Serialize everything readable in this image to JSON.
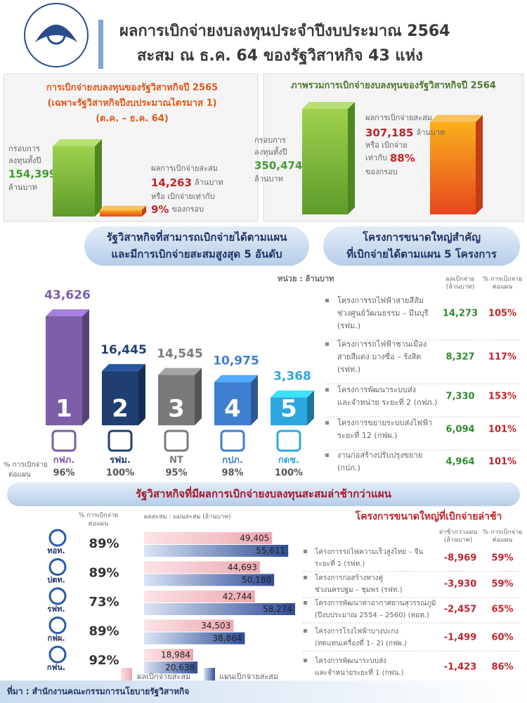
{
  "header": {
    "title": [
      "ผลการเบิกจ่ายงบลงทุนประจำปีงบประมาณ 2564",
      "สะสม ณ ธ.ค. 64 ของรัฐวิสาหกิจ 43 แห่ง"
    ]
  },
  "panel_2565": {
    "title": [
      "การเบิกจ่ายงบลงทุนของรัฐวิสาหกิจปี 2565",
      "(เฉพาะรัฐวิสาหกิจปีงบประมาณไตรมาส 1)",
      "(ต.ค. – ธ.ค. 64)"
    ],
    "budget_caption": [
      "กรอบการ",
      "ลงทุนทั้งปี"
    ],
    "budget": {
      "value": 154399,
      "label": "154,399"
    },
    "budget_unit": "ล้านบาท",
    "spent_caption": "ผลการเบิกจ่ายสะสม",
    "spent": {
      "value": 14263,
      "label": "14,263"
    },
    "spent_unit": "ล้านบาท",
    "ratio_caption": "หรือ เบิกจ่ายเท่ากับ",
    "ratio": "9%",
    "ratio_suffix": "ของกรอบ"
  },
  "panel_2564": {
    "title": "ภาพรวมการเบิกจ่ายงบลงทุนของรัฐวิสาหกิจปี 2564",
    "budget_caption": [
      "กรอบการ",
      "ลงทุนทั้งปี"
    ],
    "budget": {
      "value": 350474,
      "label": "350,474"
    },
    "budget_unit": "ล้านบาท",
    "spent_caption": "ผลการเบิกจ่ายสะสม",
    "spent": {
      "value": 307185,
      "label": "307,185"
    },
    "spent_unit": "ล้านบาท",
    "ratio_caption": [
      "หรือ เบิกจ่าย",
      "เท่ากับ"
    ],
    "ratio": "88%",
    "ratio_suffix": "ของกรอบ"
  },
  "top5": {
    "heading": [
      "รัฐวิสาหกิจที่สามารถเบิกจ่ายได้ตามแผน",
      "และมีการเบิกจ่ายสะสมสูงสุด 5 อันดับ"
    ],
    "unit": "หน่วย : ล้านบาท",
    "pct_caption": [
      "% การเบิกจ่าย",
      "ต่อแผน"
    ],
    "items": [
      {
        "rank": "1",
        "name": "กฟภ.",
        "value": {
          "value": 43626,
          "label": "43,626"
        },
        "pct": "96%",
        "color": "#7b5ea7"
      },
      {
        "rank": "2",
        "name": "รฟม.",
        "value": {
          "value": 16445,
          "label": "16,445"
        },
        "pct": "100%",
        "color": "#1f3f73"
      },
      {
        "rank": "3",
        "name": "NT",
        "value": {
          "value": 14545,
          "label": "14,545"
        },
        "pct": "95%",
        "color": "#7a7a7a"
      },
      {
        "rank": "4",
        "name": "กปภ.",
        "value": {
          "value": 10975,
          "label": "10,975"
        },
        "pct": "98%",
        "color": "#3f7fd0"
      },
      {
        "rank": "5",
        "name": "กดช.",
        "value": {
          "value": 3368,
          "label": "3,368"
        },
        "pct": "100%",
        "color": "#2ea7e0"
      }
    ]
  },
  "big_projects": {
    "heading": [
      "โครงการขนาดใหญ่สำคัญ",
      "ที่เบิกจ่ายได้ตามแผน 5 โครงการ"
    ],
    "col_value": [
      "ผลเบิกจ่าย",
      "(ล้านบาท)"
    ],
    "col_pct": [
      "% การเบิกจ่าย",
      "ต่อแผน"
    ],
    "items": [
      {
        "name": [
          "โครงการรถไฟฟ้าสายสีส้ม",
          "ช่วงศูนย์วัฒนธรรม – มีนบุรี",
          "(รฟม.)"
        ],
        "value": "14,273",
        "pct": "105%"
      },
      {
        "name": [
          "โครงการรถไฟฟ้าชานเมือง",
          "สายสีแดง บางซื่อ – รังสิต",
          "(รฟท.)"
        ],
        "value": "8,327",
        "pct": "117%"
      },
      {
        "name": [
          "โครงการพัฒนาระบบส่ง",
          "และจำหน่าย ระยะที่ 2 (กฟภ.)"
        ],
        "value": "7,330",
        "pct": "153%"
      },
      {
        "name": [
          "โครงการขยายระบบส่งไฟฟ้า",
          "ระยะที่ 12 (กฟผ.)"
        ],
        "value": "6,094",
        "pct": "101%"
      },
      {
        "name": [
          "งานก่อสร้างปรับปรุงขยาย",
          "(กปภ.)"
        ],
        "value": "4,964",
        "pct": "101%"
      }
    ]
  },
  "late": {
    "heading": "รัฐวิสาหกิจที่มีผลการเบิกจ่ายงบลงทุนสะสมล่าช้ากว่าแผน",
    "col_pct": [
      "% การเบิกจ่าย",
      "ต่อแผน"
    ],
    "col_bars": "ผลสะสม : แผนสะสม (ล้านบาท)",
    "items": [
      {
        "name": "ทอท.",
        "pct": "89%",
        "actual": {
          "value": 49405,
          "label": "49,405"
        },
        "plan": {
          "value": 55611,
          "label": "55,611"
        }
      },
      {
        "name": "ปตท.",
        "pct": "89%",
        "actual": {
          "value": 44693,
          "label": "44,693"
        },
        "plan": {
          "value": 50180,
          "label": "50,180"
        }
      },
      {
        "name": "รฟท.",
        "pct": "73%",
        "actual": {
          "value": 42744,
          "label": "42,744"
        },
        "plan": {
          "value": 58274,
          "label": "58,274"
        }
      },
      {
        "name": "กฟผ.",
        "pct": "89%",
        "actual": {
          "value": 34503,
          "label": "34,503"
        },
        "plan": {
          "value": 38864,
          "label": "38,864"
        }
      },
      {
        "name": "กฟน.",
        "pct": "92%",
        "actual": {
          "value": 18984,
          "label": "18,984"
        },
        "plan": {
          "value": 20638,
          "label": "20,638"
        }
      }
    ],
    "legend": [
      "ผลเบิกจ่ายสะสม",
      "แผนเบิกจ่ายสะสม"
    ]
  },
  "late_projects": {
    "title": "โครงการขนาดใหญ่ที่เบิกจ่ายล่าช้า",
    "col_value": [
      "ล่าช้ากว่าแผน",
      "(ล้านบาท)"
    ],
    "col_pct": [
      "% การเบิกจ่าย",
      "ต่อแผน"
    ],
    "items": [
      {
        "name": [
          "โครงการรถไฟความเร็วสูงไทย – จีน",
          "ระยะที่ 1 (รฟท.)"
        ],
        "value": "-8,969",
        "pct": "59%"
      },
      {
        "name": [
          "โครงการก่อสร้างทางคู่",
          "ช่วงนครปฐม – ชุมพร (รฟท.)"
        ],
        "value": "-3,930",
        "pct": "59%"
      },
      {
        "name": [
          "โครงการพัฒนาท่าอากาศยานสุวรรณภูมิ",
          "(ปีงบประมาณ 2554 – 2560) (ทอท.)"
        ],
        "value": "-2,457",
        "pct": "65%"
      },
      {
        "name": [
          "โครงการโรงไฟฟ้าบางปะกง",
          "(ทดแทนเครื่องที่ 1– 2) (กฟผ.)"
        ],
        "value": "-1,499",
        "pct": "60%"
      },
      {
        "name": [
          "โครงการพัฒนาระบบส่ง",
          "และจำหน่ายระยะที่ 1 (กฟน.)"
        ],
        "value": "-1,423",
        "pct": "86%"
      }
    ]
  },
  "footer": "ที่มา : สำนักงานคณะกรรมการนโยบายรัฐวิสาหกิจ"
}
